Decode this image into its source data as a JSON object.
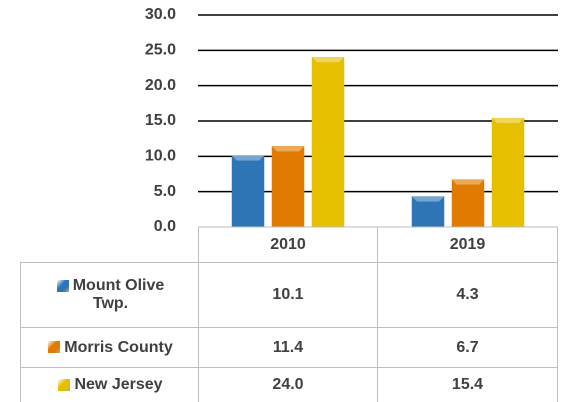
{
  "chart_data": {
    "type": "bar",
    "categories": [
      "2010",
      "2019"
    ],
    "series": [
      {
        "name": "Mount Olive Twp.",
        "color": "#2e75b6",
        "values": [
          10.1,
          4.3
        ],
        "value_labels": [
          "10.1",
          "4.3"
        ]
      },
      {
        "name": "Morris County",
        "color": "#e07b00",
        "values": [
          11.4,
          6.7
        ],
        "value_labels": [
          "11.4",
          "6.7"
        ]
      },
      {
        "name": "New Jersey",
        "color": "#e6bf00",
        "values": [
          24.0,
          15.4
        ],
        "value_labels": [
          "24.0",
          "15.4"
        ]
      }
    ],
    "ylim": [
      0,
      30
    ],
    "yticks": [
      {
        "value": 0,
        "label": "0.0"
      },
      {
        "value": 5,
        "label": "5.0"
      },
      {
        "value": 10,
        "label": "10.0"
      },
      {
        "value": 15,
        "label": "15.0"
      },
      {
        "value": 20,
        "label": "20.0"
      },
      {
        "value": 25,
        "label": "25.0"
      },
      {
        "value": 30,
        "label": "30.0"
      }
    ],
    "grid": true
  }
}
